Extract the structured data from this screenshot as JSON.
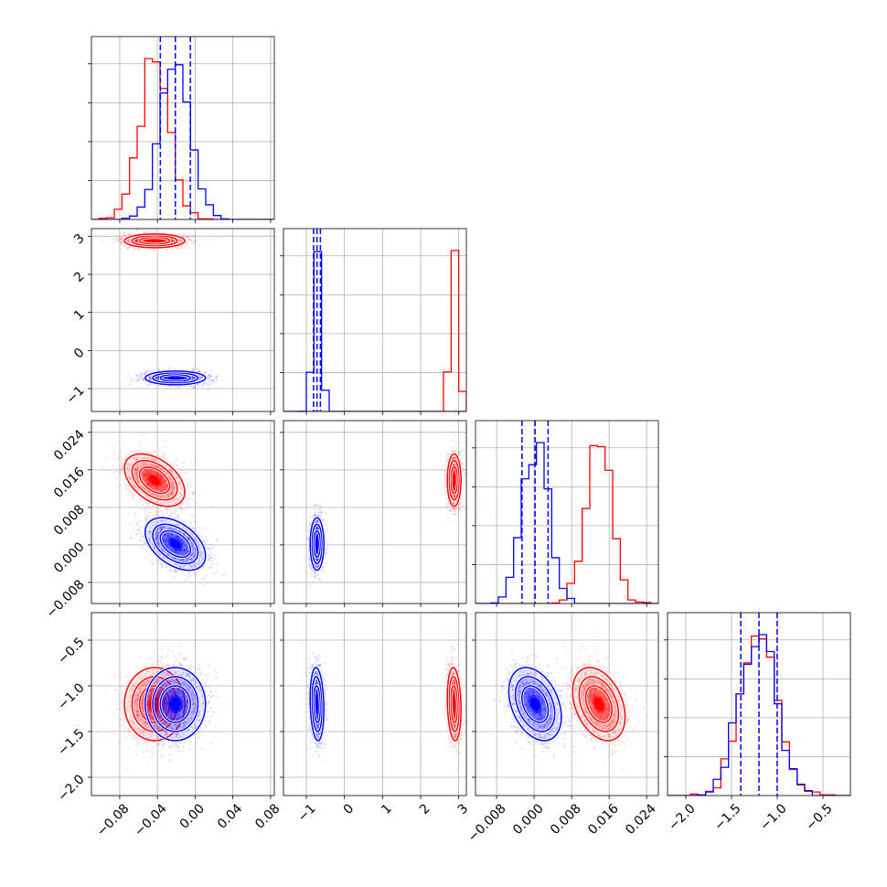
{
  "colors": {
    "series_a": "#ff0000",
    "series_b": "#0000ff",
    "grid": "#b0b0b0",
    "axes": "#000000",
    "background": "#ffffff"
  },
  "chart_data": {
    "type": "corner",
    "grid": true,
    "params": [
      {
        "range": [
          -0.11,
          0.084
        ],
        "ticks": [
          -0.08,
          -0.04,
          0.0,
          0.04,
          0.08
        ],
        "ticklabels": [
          "−0.08",
          "−0.04",
          "0.00",
          "0.04",
          "0.08"
        ]
      },
      {
        "range": [
          -1.6,
          3.2
        ],
        "ticks": [
          -1,
          0,
          1,
          2,
          3
        ],
        "ticklabels": [
          "−1",
          "0",
          "1",
          "2",
          "3"
        ]
      },
      {
        "range": [
          -0.0125,
          0.0265
        ],
        "ticks": [
          -0.008,
          0.0,
          0.008,
          0.016,
          0.024
        ],
        "ticklabels": [
          "−0.008",
          "0.000",
          "0.008",
          "0.016",
          "0.024"
        ]
      },
      {
        "range": [
          -2.2,
          -0.2
        ],
        "ticks": [
          -2.0,
          -1.5,
          -1.0,
          -0.5
        ],
        "ticklabels": [
          "−2.0",
          "−1.5",
          "−1.0",
          "−0.5"
        ]
      }
    ],
    "series": [
      {
        "color": "#ff0000",
        "mean": [
          -0.043,
          2.88,
          0.0138,
          -1.2
        ],
        "sd": [
          0.016,
          0.09,
          0.0028,
          0.2
        ],
        "quantile_lines": false
      },
      {
        "color": "#0000ff",
        "mean": [
          -0.021,
          -0.72,
          0.0002,
          -1.2
        ],
        "sd": [
          0.016,
          0.09,
          0.0028,
          0.2
        ],
        "quantile_lines": true
      }
    ],
    "quantiles": [
      0.16,
      0.5,
      0.84
    ],
    "contour_levels_sigma": [
      0.5,
      1.0,
      1.5,
      2.0
    ]
  }
}
